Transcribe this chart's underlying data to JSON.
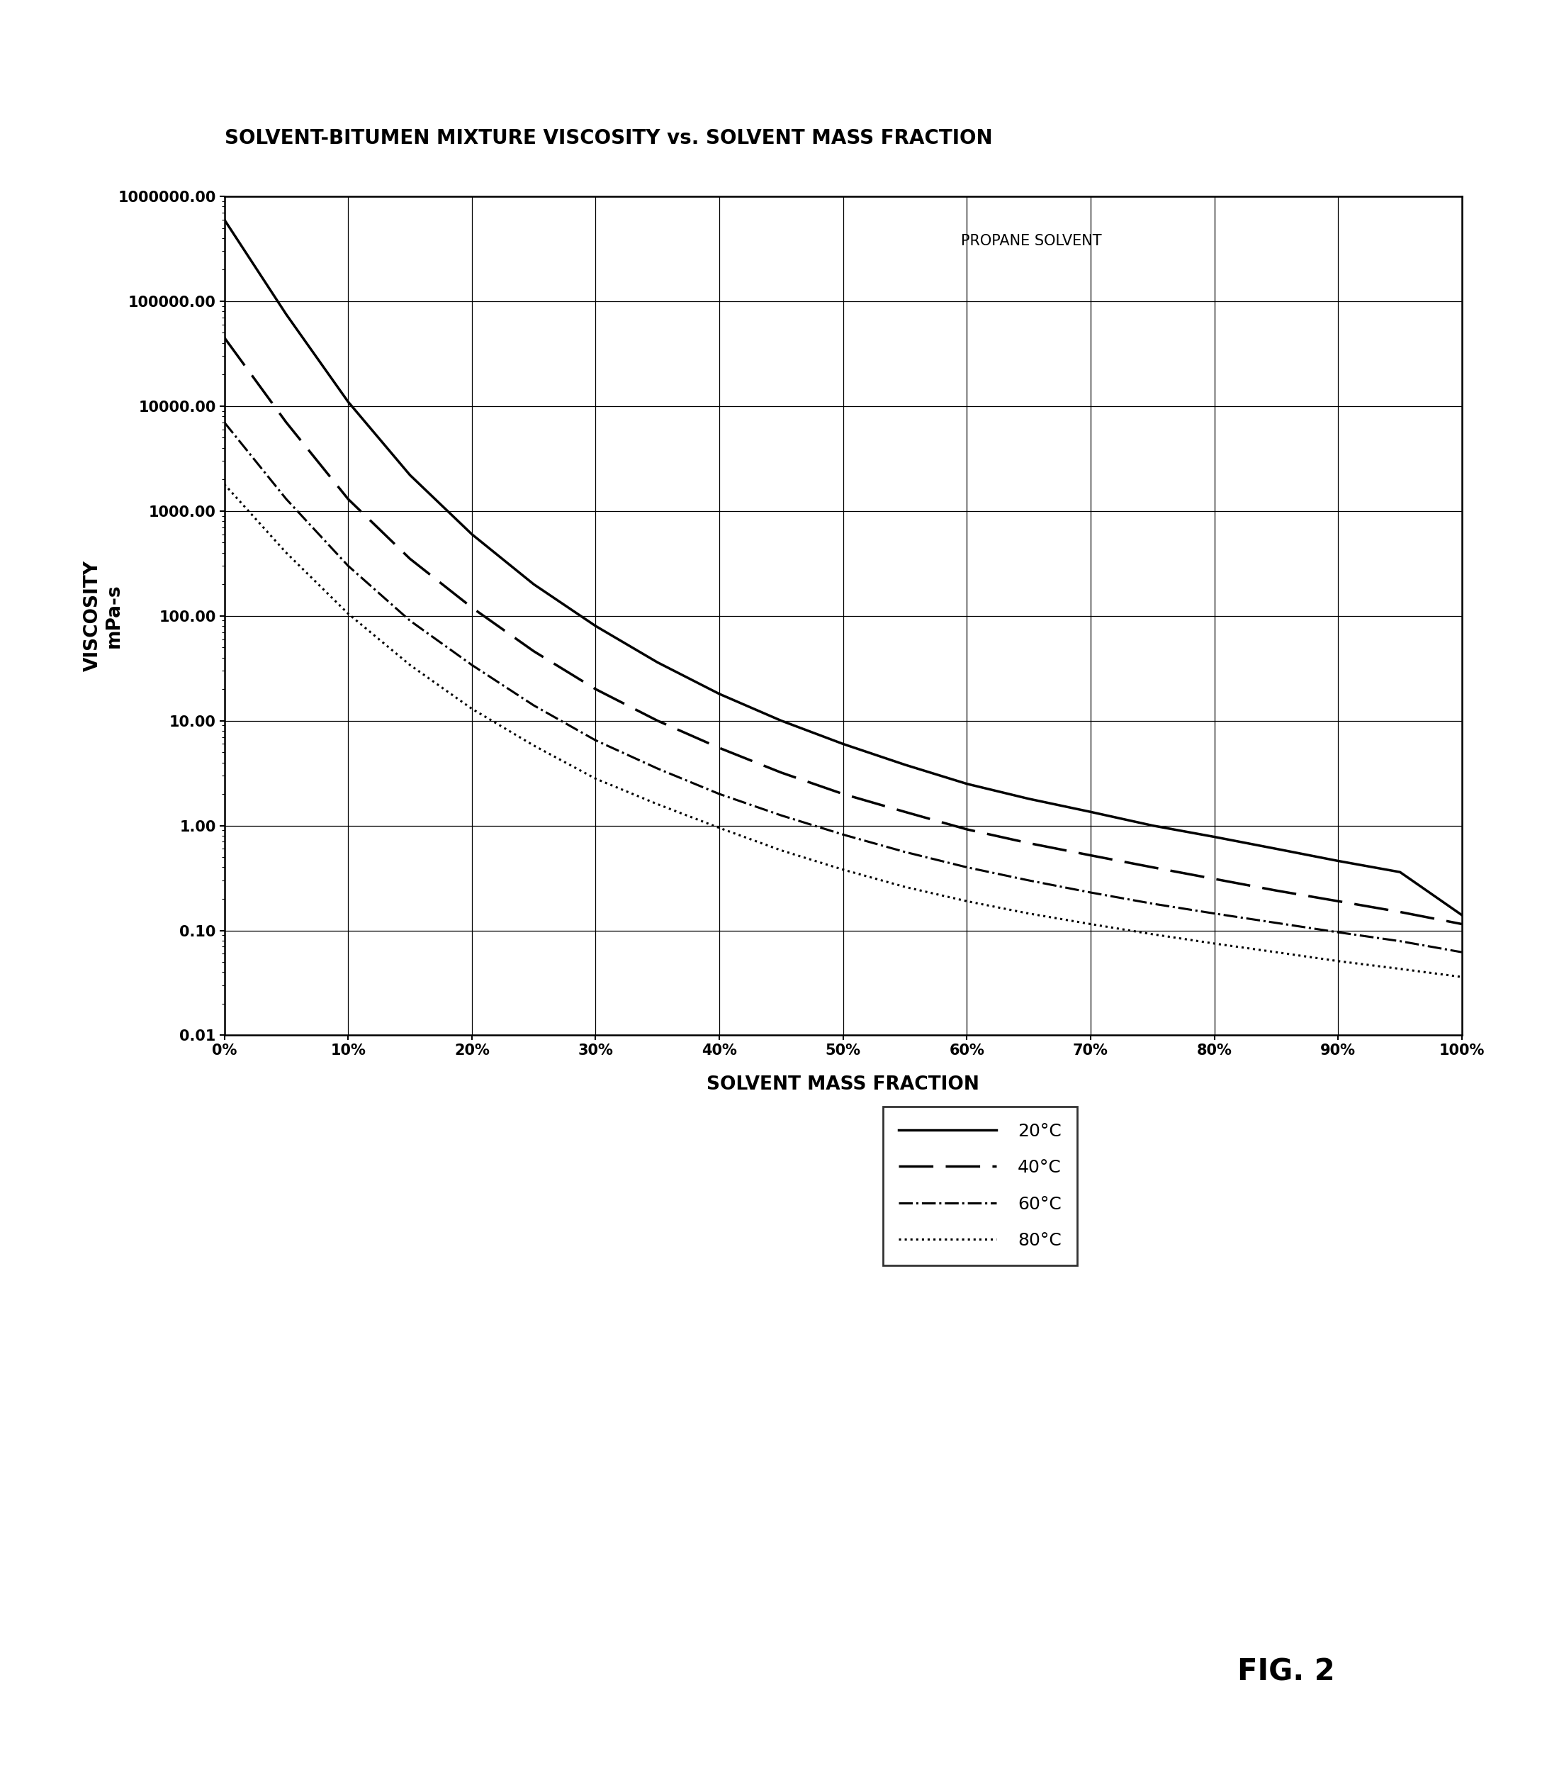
{
  "title": "SOLVENT-BITUMEN MIXTURE VISCOSITY vs. SOLVENT MASS FRACTION",
  "xlabel": "SOLVENT MASS FRACTION",
  "ylabel": "VISCOSITY\nmPa-s",
  "annotation": "PROPANE SOLVENT",
  "fig_label": "FIG. 2",
  "x_ticks": [
    0.0,
    0.1,
    0.2,
    0.3,
    0.4,
    0.5,
    0.6,
    0.7,
    0.8,
    0.9,
    1.0
  ],
  "x_tick_labels": [
    "0%",
    "10%",
    "20%",
    "30%",
    "40%",
    "50%",
    "60%",
    "70%",
    "80%",
    "90%",
    "100%"
  ],
  "ylim": [
    0.01,
    1000000.0
  ],
  "xlim": [
    0.0,
    1.0
  ],
  "background_color": "#ffffff",
  "line_color": "#000000",
  "curves": {
    "20C": {
      "label": "20°C",
      "linestyle": "solid",
      "linewidth": 2.5,
      "x": [
        0.0,
        0.05,
        0.1,
        0.15,
        0.2,
        0.25,
        0.3,
        0.35,
        0.4,
        0.45,
        0.5,
        0.55,
        0.6,
        0.65,
        0.7,
        0.75,
        0.8,
        0.85,
        0.9,
        0.95,
        1.0
      ],
      "y": [
        600000,
        75000,
        11000,
        2200,
        600,
        200,
        80,
        36,
        18,
        10,
        6.0,
        3.8,
        2.5,
        1.8,
        1.35,
        1.0,
        0.78,
        0.6,
        0.46,
        0.36,
        0.14
      ]
    },
    "40C": {
      "label": "40°C",
      "linestyle": "dashed",
      "linewidth": 2.5,
      "x": [
        0.0,
        0.05,
        0.1,
        0.15,
        0.2,
        0.25,
        0.3,
        0.35,
        0.4,
        0.45,
        0.5,
        0.55,
        0.6,
        0.65,
        0.7,
        0.75,
        0.8,
        0.85,
        0.9,
        0.95,
        1.0
      ],
      "y": [
        45000,
        7000,
        1300,
        350,
        120,
        46,
        20,
        10,
        5.5,
        3.2,
        2.0,
        1.35,
        0.92,
        0.68,
        0.52,
        0.4,
        0.31,
        0.24,
        0.19,
        0.15,
        0.115
      ]
    },
    "60C": {
      "label": "60°C",
      "linestyle": "dashdot",
      "linewidth": 2.2,
      "x": [
        0.0,
        0.05,
        0.1,
        0.15,
        0.2,
        0.25,
        0.3,
        0.35,
        0.4,
        0.45,
        0.5,
        0.55,
        0.6,
        0.65,
        0.7,
        0.75,
        0.8,
        0.85,
        0.9,
        0.95,
        1.0
      ],
      "y": [
        7000,
        1300,
        300,
        90,
        34,
        14,
        6.5,
        3.5,
        2.0,
        1.25,
        0.82,
        0.56,
        0.4,
        0.3,
        0.23,
        0.18,
        0.145,
        0.118,
        0.096,
        0.079,
        0.062
      ]
    },
    "80C": {
      "label": "80°C",
      "linestyle": "dotted",
      "linewidth": 2.2,
      "x": [
        0.0,
        0.05,
        0.1,
        0.15,
        0.2,
        0.25,
        0.3,
        0.35,
        0.4,
        0.45,
        0.5,
        0.55,
        0.6,
        0.65,
        0.7,
        0.75,
        0.8,
        0.85,
        0.9,
        0.95,
        1.0
      ],
      "y": [
        1800,
        400,
        105,
        34,
        13,
        5.8,
        2.8,
        1.6,
        0.95,
        0.58,
        0.38,
        0.26,
        0.19,
        0.145,
        0.115,
        0.092,
        0.075,
        0.062,
        0.051,
        0.043,
        0.036
      ]
    }
  },
  "title_fontsize": 20,
  "axis_label_fontsize": 19,
  "tick_fontsize": 15,
  "annotation_fontsize": 15,
  "legend_fontsize": 18,
  "fig_label_fontsize": 30
}
